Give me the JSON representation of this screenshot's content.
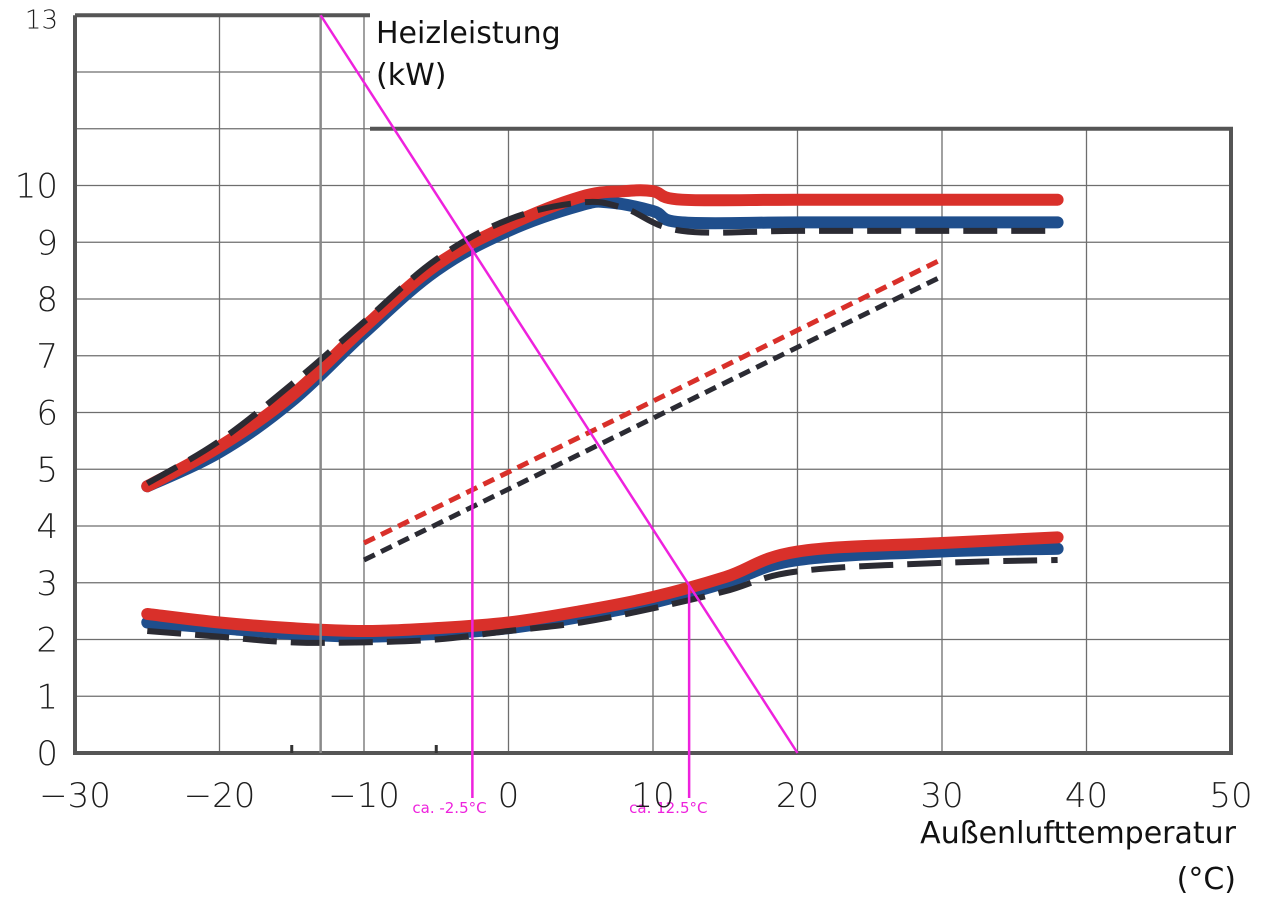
{
  "chart_data": {
    "type": "line",
    "xlabel": [
      "Außenlufttemperatur",
      "(°C)"
    ],
    "ylabel": [
      "Heizleistung",
      "(kW)"
    ],
    "xlim": [
      -30,
      50
    ],
    "ylim": [
      0,
      13
    ],
    "x_ticks": [
      -30,
      -20,
      -10,
      0,
      10,
      20,
      30,
      40,
      50
    ],
    "y_ticks": [
      0,
      1,
      2,
      3,
      4,
      5,
      6,
      7,
      8,
      9,
      10
    ],
    "y_top_label": "13",
    "grid": true,
    "colors": {
      "red": "#d9302a",
      "blue": "#1f4e8c",
      "dark": "#2b2b33",
      "magenta": "#ee22dd",
      "grid": "#6e6e6e"
    },
    "series": [
      {
        "x": [
          -25,
          -20,
          -15,
          -10,
          -5,
          0,
          5,
          8,
          10,
          12,
          20,
          30,
          38
        ],
        "y": [
          4.7,
          5.4,
          6.3,
          7.5,
          8.6,
          9.3,
          9.8,
          9.9,
          9.9,
          9.75,
          9.75,
          9.75,
          9.75
        ],
        "color": "red",
        "style": "solid"
      },
      {
        "x": [
          -25,
          -20,
          -15,
          -10,
          -5,
          0,
          5,
          7,
          10,
          12,
          20,
          30,
          38
        ],
        "y": [
          4.7,
          5.3,
          6.2,
          7.4,
          8.5,
          9.2,
          9.65,
          9.7,
          9.55,
          9.35,
          9.35,
          9.35,
          9.35
        ],
        "color": "blue",
        "style": "solid"
      },
      {
        "x": [
          -25,
          -20,
          -15,
          -10,
          -5,
          0,
          5,
          8,
          12,
          20,
          30,
          38
        ],
        "y": [
          4.75,
          5.5,
          6.5,
          7.6,
          8.7,
          9.4,
          9.7,
          9.6,
          9.2,
          9.2,
          9.2,
          9.2
        ],
        "color": "dark",
        "style": "longdash"
      },
      {
        "x": [
          -10,
          30
        ],
        "y": [
          3.7,
          8.7
        ],
        "color": "red",
        "style": "shortdash"
      },
      {
        "x": [
          -10,
          30
        ],
        "y": [
          3.4,
          8.4
        ],
        "color": "dark",
        "style": "shortdash"
      },
      {
        "x": [
          -25,
          -20,
          -15,
          -10,
          -5,
          0,
          5,
          10,
          15,
          20,
          30,
          38
        ],
        "y": [
          2.45,
          2.3,
          2.2,
          2.15,
          2.2,
          2.3,
          2.5,
          2.75,
          3.1,
          3.55,
          3.7,
          3.8
        ],
        "color": "red",
        "style": "solid"
      },
      {
        "x": [
          -25,
          -20,
          -15,
          -10,
          -5,
          0,
          5,
          10,
          15,
          20,
          30,
          38
        ],
        "y": [
          2.3,
          2.2,
          2.1,
          2.05,
          2.1,
          2.2,
          2.4,
          2.65,
          3.0,
          3.4,
          3.55,
          3.6
        ],
        "color": "blue",
        "style": "solid"
      },
      {
        "x": [
          -25,
          -20,
          -15,
          -10,
          -5,
          0,
          5,
          10,
          15,
          20,
          30,
          38
        ],
        "y": [
          2.15,
          2.05,
          1.95,
          1.95,
          2.0,
          2.15,
          2.3,
          2.55,
          2.85,
          3.2,
          3.35,
          3.4
        ],
        "color": "dark",
        "style": "longdash"
      }
    ],
    "annotations": {
      "vertical_line_x": -13,
      "diagonal_line": {
        "x": [
          -13,
          20
        ],
        "y": [
          13,
          0
        ]
      },
      "intersections": [
        {
          "x": -2.5,
          "y": 8.9,
          "label": "ca. -2.5°C"
        },
        {
          "x": 12.5,
          "y": 2.95,
          "label": "ca. 12.5°C"
        }
      ]
    }
  }
}
